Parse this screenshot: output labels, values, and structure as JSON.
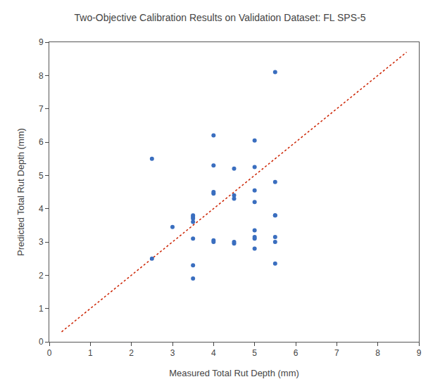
{
  "chart_data": {
    "type": "scatter",
    "title": "Two-Objective Calibration Results on Validation Dataset: FL SPS-5",
    "xlabel": "Measured Total Rut Depth (mm)",
    "ylabel": "Predicted Total Rut Depth (mm)",
    "xlim": [
      0,
      9
    ],
    "ylim": [
      0,
      9
    ],
    "xticks": [
      0,
      1,
      2,
      3,
      4,
      5,
      6,
      7,
      8,
      9
    ],
    "yticks": [
      0,
      1,
      2,
      3,
      4,
      5,
      6,
      7,
      8,
      9
    ],
    "grid": false,
    "series": [
      {
        "type": "scatter",
        "marker": "circle",
        "color": "#3A6EBF",
        "x": [
          2.5,
          3.0,
          3.5,
          3.5,
          3.5,
          3.5,
          3.5,
          3.5,
          3.5,
          4.0,
          4.0,
          4.0,
          4.0,
          4.0,
          4.0,
          4.5,
          4.5,
          4.5,
          4.5,
          4.5,
          5.0,
          5.0,
          5.0,
          5.0,
          5.0,
          5.0,
          5.0,
          5.0,
          5.5,
          5.5,
          5.5,
          5.5,
          5.5,
          5.5,
          5.5,
          2.5
        ],
        "values": [
          5.5,
          3.45,
          3.8,
          3.75,
          3.7,
          3.6,
          3.1,
          2.3,
          1.9,
          6.2,
          5.3,
          4.5,
          4.45,
          3.05,
          3.0,
          5.2,
          4.3,
          4.4,
          3.0,
          2.95,
          6.05,
          5.25,
          4.55,
          4.2,
          3.35,
          3.15,
          3.1,
          2.8,
          8.1,
          4.8,
          3.8,
          3.8,
          3.15,
          3.0,
          2.35,
          2.5
        ]
      },
      {
        "type": "line",
        "line_style": "dotted",
        "color": "#CC2200",
        "x": [
          0.3,
          8.7
        ],
        "values": [
          0.3,
          8.7
        ]
      }
    ]
  }
}
